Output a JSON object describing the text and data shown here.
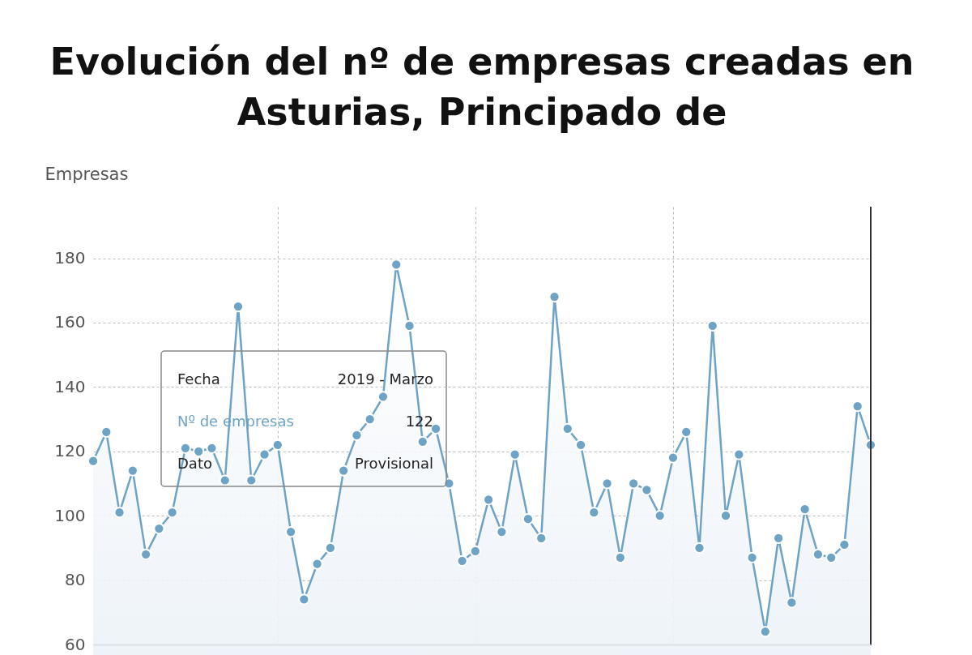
{
  "chart_data": {
    "type": "area",
    "title": "Evolución del nº de empresas creadas en Asturias, Principado de",
    "ylabel": "Empresas",
    "categories": [
      null,
      null,
      null,
      null,
      null,
      null,
      null,
      null,
      null,
      null,
      null,
      null,
      null,
      null,
      null,
      null,
      null,
      null,
      null,
      null,
      null,
      null,
      null,
      null,
      null,
      null,
      null,
      null,
      null,
      null,
      null,
      null,
      null,
      null,
      null,
      null,
      null,
      null,
      null,
      null,
      null,
      null,
      null,
      null,
      null,
      null,
      null,
      null,
      null,
      null,
      null,
      null,
      null,
      null,
      null,
      null,
      null,
      null,
      null,
      null
    ],
    "series": [
      {
        "color": "#6fa3c6",
        "values": [
          117,
          126,
          101,
          114,
          88,
          96,
          101,
          121,
          120,
          121,
          111,
          165,
          111,
          119,
          122,
          95,
          74,
          85,
          90,
          114,
          125,
          130,
          137,
          178,
          159,
          123,
          127,
          110,
          86,
          89,
          105,
          95,
          119,
          99,
          93,
          168,
          127,
          122,
          101,
          110,
          87,
          110,
          108,
          100,
          118,
          126,
          90,
          159,
          100,
          119,
          87,
          64,
          93,
          73,
          102,
          88,
          87,
          91,
          134,
          122
        ]
      }
    ],
    "ylim": [
      60,
      196
    ],
    "yticks": [
      60,
      80,
      100,
      120,
      140,
      160,
      180
    ],
    "grid": true,
    "marker": "circle",
    "annotations": [
      "Fecha",
      "2019 - Marzo",
      "Nº de empresas",
      "122",
      "Dato",
      "Provisional"
    ]
  }
}
